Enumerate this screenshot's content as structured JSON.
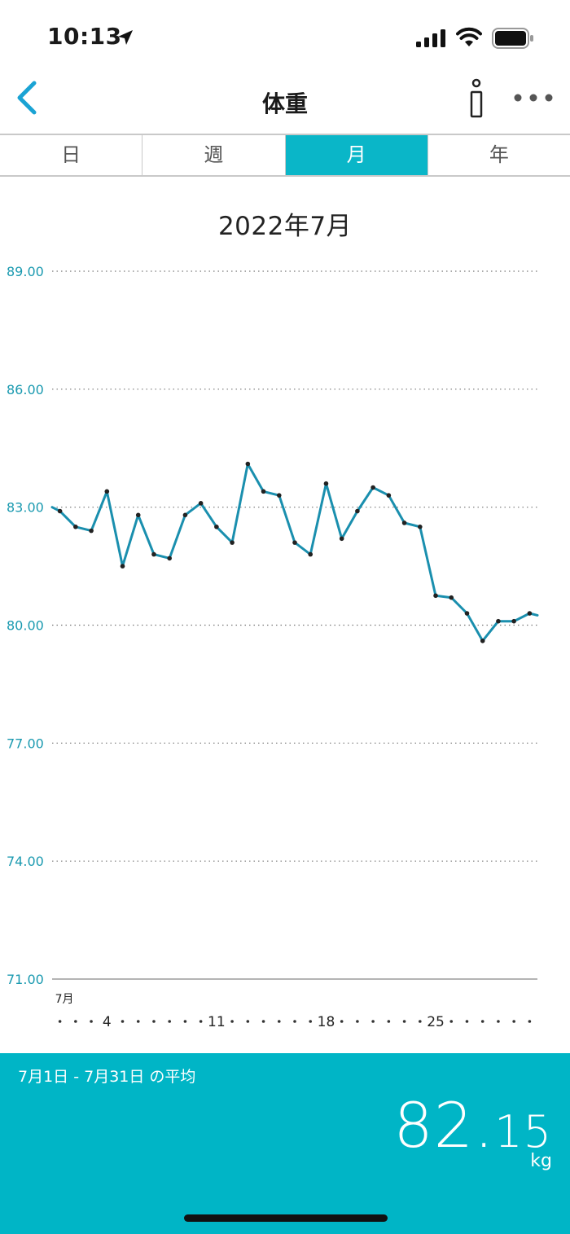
{
  "status_bar": {
    "time": "10:13",
    "icons": [
      "location-arrow-icon",
      "cellular-signal-icon",
      "wifi-icon",
      "battery-icon"
    ]
  },
  "nav": {
    "title": "体重",
    "back_icon": "chevron-left-icon",
    "info_icon": "info-icon",
    "more_icon": "more-horizontal-icon"
  },
  "tabs": [
    {
      "label": "日",
      "active": false
    },
    {
      "label": "週",
      "active": false
    },
    {
      "label": "月",
      "active": true
    },
    {
      "label": "年",
      "active": false
    }
  ],
  "period_title": "2022年7月",
  "chart_data": {
    "type": "line",
    "title": "",
    "xlabel": "",
    "ylabel": "",
    "ylim": [
      71,
      89
    ],
    "xlim": [
      1,
      31
    ],
    "y_ticks": [
      "89.00",
      "86.00",
      "83.00",
      "80.00",
      "77.00",
      "74.00",
      "71.00"
    ],
    "x_month_label": "7月",
    "x_ticks": [
      {
        "day": 4,
        "label": "4"
      },
      {
        "day": 11,
        "label": "11"
      },
      {
        "day": 18,
        "label": "18"
      },
      {
        "day": 25,
        "label": "25"
      }
    ],
    "grid": true,
    "series": [
      {
        "color": "#1a8fae",
        "points": [
          {
            "x": 1,
            "y": 82.9
          },
          {
            "x": 2,
            "y": 82.5
          },
          {
            "x": 3,
            "y": 82.4
          },
          {
            "x": 4,
            "y": 83.4
          },
          {
            "x": 5,
            "y": 81.5
          },
          {
            "x": 6,
            "y": 82.8
          },
          {
            "x": 7,
            "y": 81.8
          },
          {
            "x": 8,
            "y": 81.7
          },
          {
            "x": 9,
            "y": 82.8
          },
          {
            "x": 10,
            "y": 83.1
          },
          {
            "x": 11,
            "y": 82.5
          },
          {
            "x": 12,
            "y": 82.1
          },
          {
            "x": 13,
            "y": 84.1
          },
          {
            "x": 14,
            "y": 83.4
          },
          {
            "x": 15,
            "y": 83.3
          },
          {
            "x": 16,
            "y": 82.1
          },
          {
            "x": 17,
            "y": 81.8
          },
          {
            "x": 18,
            "y": 83.6
          },
          {
            "x": 19,
            "y": 82.2
          },
          {
            "x": 20,
            "y": 82.9
          },
          {
            "x": 21,
            "y": 83.5
          },
          {
            "x": 22,
            "y": 83.3
          },
          {
            "x": 23,
            "y": 82.6
          },
          {
            "x": 24,
            "y": 82.5
          },
          {
            "x": 25,
            "y": 80.75
          },
          {
            "x": 26,
            "y": 80.7
          },
          {
            "x": 27,
            "y": 80.3
          },
          {
            "x": 28,
            "y": 79.6
          },
          {
            "x": 29,
            "y": 80.1
          },
          {
            "x": 30,
            "y": 80.1
          },
          {
            "x": 31,
            "y": 80.3
          }
        ]
      }
    ]
  },
  "summary": {
    "label": "7月1日 - 7月31日 の平均",
    "value_int": "82.",
    "value_dec": "15",
    "unit": "kg"
  },
  "colors": {
    "accent": "#0ab6c8",
    "footer_bg": "#00b5c6",
    "line": "#1a8fae",
    "axis_text": "#1b9ab0",
    "back_chevron": "#1aa3d4"
  }
}
